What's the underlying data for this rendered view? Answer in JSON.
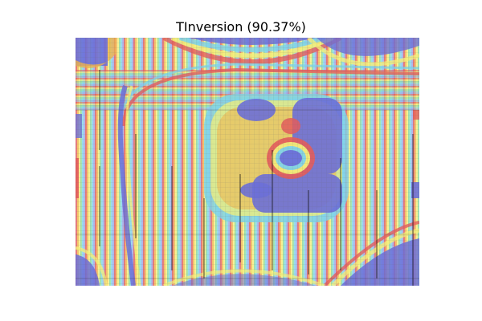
{
  "title": "TInversion (90.37%)",
  "colors": {
    "background": "#ffffff",
    "colormap": "jet",
    "trace": "#000000"
  }
}
